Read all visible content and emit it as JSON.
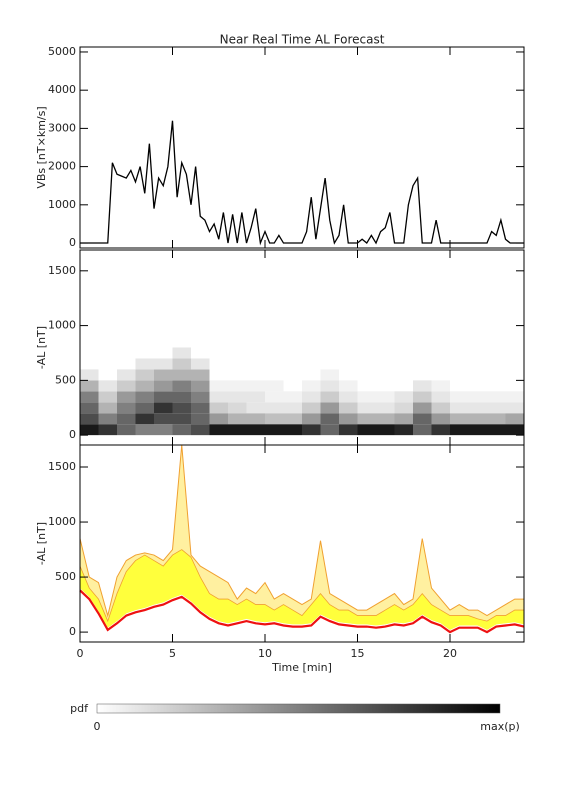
{
  "chart_data": [
    {
      "type": "line",
      "title": "Near Real Time AL Forecast",
      "ylabel": "VBs [nT×km/s]",
      "color": "#000000",
      "x": [
        0,
        0.25,
        0.5,
        0.75,
        1,
        1.25,
        1.5,
        1.75,
        2,
        2.25,
        2.5,
        2.75,
        3,
        3.25,
        3.5,
        3.75,
        4,
        4.25,
        4.5,
        4.75,
        5,
        5.25,
        5.5,
        5.75,
        6,
        6.25,
        6.5,
        6.75,
        7,
        7.25,
        7.5,
        7.75,
        8,
        8.25,
        8.5,
        8.75,
        9,
        9.25,
        9.5,
        9.75,
        10,
        10.25,
        10.5,
        10.75,
        11,
        11.25,
        11.5,
        11.75,
        12,
        12.25,
        12.5,
        12.75,
        13,
        13.25,
        13.5,
        13.75,
        14,
        14.25,
        14.5,
        14.75,
        15,
        15.25,
        15.5,
        15.75,
        16,
        16.25,
        16.5,
        16.75,
        17,
        17.25,
        17.5,
        17.75,
        18,
        18.25,
        18.5,
        18.75,
        19,
        19.25,
        19.5,
        19.75,
        20,
        20.25,
        20.5,
        20.75,
        21,
        21.25,
        21.5,
        21.75,
        22,
        22.25,
        22.5,
        22.75,
        23,
        23.25,
        23.5,
        23.75,
        24
      ],
      "values": [
        0,
        0,
        0,
        0,
        0,
        0,
        0,
        2100,
        1800,
        1750,
        1700,
        1900,
        1600,
        2000,
        1300,
        2600,
        900,
        1700,
        1500,
        2000,
        3200,
        1200,
        2100,
        1800,
        1000,
        2000,
        700,
        600,
        300,
        500,
        100,
        800,
        0,
        750,
        0,
        800,
        0,
        400,
        900,
        0,
        300,
        0,
        0,
        200,
        0,
        0,
        0,
        0,
        0,
        300,
        1200,
        100,
        900,
        1700,
        600,
        0,
        200,
        1000,
        0,
        0,
        0,
        100,
        0,
        200,
        0,
        300,
        400,
        800,
        0,
        0,
        0,
        1000,
        1500,
        1700,
        0,
        0,
        0,
        600,
        0,
        0,
        0,
        0,
        0,
        0,
        0,
        0,
        0,
        0,
        0,
        300,
        200,
        600,
        100,
        0,
        0,
        0,
        0
      ],
      "xlim": [
        0,
        24
      ],
      "xticks": [
        0,
        5,
        10,
        15,
        20
      ],
      "ylim": [
        -130,
        5130
      ],
      "yticks": [
        0,
        1000,
        2000,
        3000,
        4000,
        5000
      ]
    },
    {
      "type": "heatmap",
      "ylabel": "-AL [nT]",
      "x_bins": [
        0,
        1,
        2,
        3,
        4,
        5,
        6,
        7,
        8,
        9,
        10,
        11,
        12,
        13,
        14,
        15,
        16,
        17,
        18,
        19,
        20,
        21,
        22,
        23,
        24
      ],
      "y_bins": [
        0,
        100,
        200,
        300,
        400,
        500,
        600,
        700,
        800
      ],
      "z": [
        [
          0.9,
          0.7,
          0.6,
          0.5,
          0.3,
          0.1,
          0,
          0
        ],
        [
          0.8,
          0.5,
          0.3,
          0.2,
          0.1,
          0,
          0,
          0
        ],
        [
          0.6,
          0.6,
          0.5,
          0.4,
          0.2,
          0.1,
          0,
          0
        ],
        [
          0.5,
          0.8,
          0.6,
          0.5,
          0.3,
          0.2,
          0.1,
          0
        ],
        [
          0.5,
          0.7,
          0.8,
          0.6,
          0.4,
          0.3,
          0.1,
          0
        ],
        [
          0.6,
          0.7,
          0.7,
          0.6,
          0.5,
          0.3,
          0.2,
          0.1
        ],
        [
          0.7,
          0.6,
          0.6,
          0.5,
          0.4,
          0.3,
          0.1,
          0
        ],
        [
          0.9,
          0.4,
          0.2,
          0.1,
          0.05,
          0,
          0,
          0
        ],
        [
          0.9,
          0.3,
          0.15,
          0.1,
          0.05,
          0,
          0,
          0
        ],
        [
          0.9,
          0.3,
          0.1,
          0.1,
          0.05,
          0,
          0,
          0
        ],
        [
          0.9,
          0.25,
          0.1,
          0.05,
          0.05,
          0,
          0,
          0
        ],
        [
          0.9,
          0.25,
          0.1,
          0.05,
          0,
          0,
          0,
          0
        ],
        [
          0.8,
          0.4,
          0.2,
          0.1,
          0.05,
          0,
          0,
          0
        ],
        [
          0.6,
          0.6,
          0.4,
          0.2,
          0.1,
          0.05,
          0,
          0
        ],
        [
          0.8,
          0.4,
          0.2,
          0.1,
          0.05,
          0,
          0,
          0
        ],
        [
          0.9,
          0.3,
          0.1,
          0.05,
          0,
          0,
          0,
          0
        ],
        [
          0.9,
          0.3,
          0.1,
          0.05,
          0,
          0,
          0,
          0
        ],
        [
          0.85,
          0.35,
          0.15,
          0.1,
          0,
          0,
          0,
          0
        ],
        [
          0.6,
          0.6,
          0.4,
          0.2,
          0.1,
          0,
          0,
          0
        ],
        [
          0.8,
          0.4,
          0.2,
          0.1,
          0.05,
          0,
          0,
          0
        ],
        [
          0.9,
          0.3,
          0.1,
          0.05,
          0,
          0,
          0,
          0
        ],
        [
          0.9,
          0.3,
          0.1,
          0.05,
          0,
          0,
          0,
          0
        ],
        [
          0.9,
          0.3,
          0.1,
          0.05,
          0,
          0,
          0,
          0
        ],
        [
          0.9,
          0.35,
          0.1,
          0.05,
          0,
          0,
          0,
          0
        ]
      ],
      "colorbar": {
        "label": "pdf",
        "min_label": "0",
        "max_label": "max(p)"
      },
      "xlim": [
        0,
        24
      ],
      "xticks": [
        0,
        5,
        10,
        15,
        20
      ],
      "ylim": [
        -90,
        1690
      ],
      "yticks": [
        0,
        500,
        1000,
        1500
      ]
    },
    {
      "type": "band",
      "ylabel": "-AL [nT]",
      "xlabel": "Time [min]",
      "x": [
        0,
        0.5,
        1,
        1.5,
        2,
        2.5,
        3,
        3.5,
        4,
        4.5,
        5,
        5.5,
        6,
        6.5,
        7,
        7.5,
        8,
        8.5,
        9,
        9.5,
        10,
        10.5,
        11,
        11.5,
        12,
        12.5,
        13,
        13.5,
        14,
        14.5,
        15,
        15.5,
        16,
        16.5,
        17,
        17.5,
        18,
        18.5,
        19,
        19.5,
        20,
        20.5,
        21,
        21.5,
        22,
        22.5,
        23,
        23.5,
        24
      ],
      "envelope": {
        "color": "#f0a030",
        "fill": "#fff0a0",
        "values": [
          850,
          500,
          450,
          150,
          500,
          650,
          700,
          720,
          700,
          650,
          750,
          1700,
          700,
          600,
          550,
          500,
          450,
          300,
          400,
          350,
          450,
          300,
          350,
          300,
          250,
          300,
          830,
          350,
          300,
          250,
          200,
          200,
          250,
          300,
          350,
          250,
          300,
          850,
          400,
          300,
          200,
          250,
          200,
          200,
          150,
          200,
          250,
          300,
          300
        ]
      },
      "band": {
        "color": "#ffff3c",
        "low": [
          400,
          320,
          190,
          40,
          100,
          170,
          200,
          220,
          250,
          270,
          310,
          340,
          280,
          200,
          140,
          100,
          80,
          100,
          120,
          100,
          90,
          100,
          80,
          70,
          70,
          80,
          160,
          120,
          90,
          80,
          70,
          70,
          60,
          70,
          90,
          80,
          100,
          160,
          110,
          80,
          20,
          60,
          60,
          60,
          20,
          70,
          80,
          90,
          70
        ],
        "high": [
          600,
          400,
          300,
          100,
          350,
          550,
          650,
          700,
          650,
          600,
          700,
          750,
          680,
          500,
          350,
          300,
          300,
          250,
          300,
          250,
          250,
          200,
          250,
          200,
          150,
          250,
          350,
          250,
          200,
          200,
          150,
          150,
          150,
          200,
          250,
          200,
          250,
          350,
          250,
          200,
          150,
          150,
          150,
          120,
          100,
          150,
          150,
          200,
          200
        ]
      },
      "median": {
        "color": "#ee1111",
        "values": [
          380,
          300,
          170,
          20,
          80,
          150,
          180,
          200,
          230,
          250,
          290,
          320,
          260,
          180,
          120,
          80,
          60,
          80,
          100,
          80,
          70,
          80,
          60,
          50,
          50,
          60,
          140,
          100,
          70,
          60,
          50,
          50,
          40,
          50,
          70,
          60,
          80,
          140,
          90,
          60,
          0,
          40,
          40,
          40,
          0,
          50,
          60,
          70,
          50
        ]
      },
      "xlim": [
        0,
        24
      ],
      "xticks": [
        0,
        5,
        10,
        15,
        20
      ],
      "ylim": [
        -90,
        1700
      ],
      "yticks": [
        0,
        500,
        1000,
        1500
      ]
    }
  ]
}
